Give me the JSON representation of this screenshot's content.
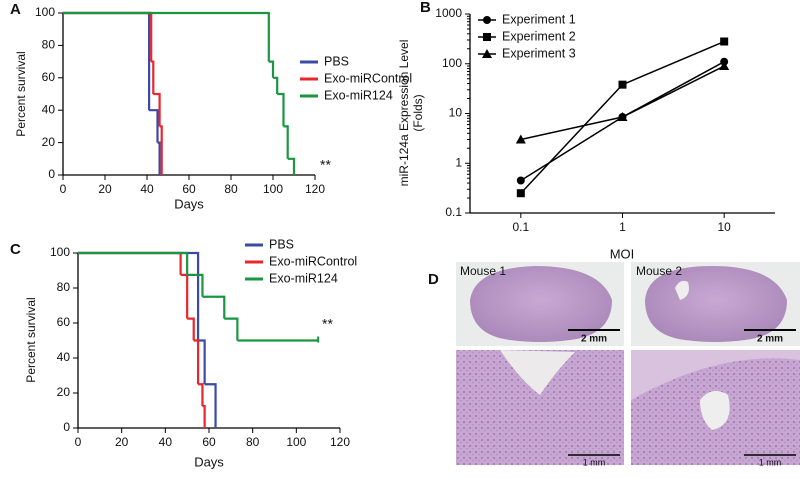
{
  "chart_data": [
    {
      "panel": "A",
      "type": "step",
      "xlabel": "Days",
      "ylabel": "Percent survival",
      "xlim": [
        0,
        120
      ],
      "xticks": [
        0,
        20,
        40,
        60,
        80,
        100,
        120
      ],
      "ylim": [
        0,
        100
      ],
      "yticks": [
        0,
        20,
        40,
        60,
        80,
        100
      ],
      "legend": "right",
      "annotation": "**",
      "series": [
        {
          "name": "PBS",
          "color": "#3a4aa6",
          "x": [
            0,
            41,
            45,
            46
          ],
          "values": [
            100,
            40,
            20,
            0
          ]
        },
        {
          "name": "Exo-miRControl",
          "color": "#e8262b",
          "x": [
            0,
            42,
            43,
            46,
            47
          ],
          "values": [
            100,
            70,
            50,
            30,
            0
          ]
        },
        {
          "name": "Exo-miR124",
          "color": "#1a9641",
          "x": [
            0,
            98,
            100,
            102,
            105,
            107,
            110
          ],
          "values": [
            100,
            70,
            60,
            50,
            30,
            10,
            0
          ]
        }
      ]
    },
    {
      "panel": "B",
      "type": "line",
      "xlabel": "MOI",
      "ylabel": [
        "miR-124a Expression Level",
        "(Folds)"
      ],
      "categories": [
        "0.1",
        "1",
        "10"
      ],
      "log_y": true,
      "ylim": [
        0.1,
        1000
      ],
      "yticks": [
        0.1,
        1,
        10,
        100,
        1000
      ],
      "legend": "upper left",
      "series": [
        {
          "name": "Experiment 1",
          "color": "#000000",
          "marker": "circle",
          "values": [
            0.45,
            8.5,
            110
          ]
        },
        {
          "name": "Experiment 2",
          "color": "#000000",
          "marker": "square",
          "values": [
            0.25,
            38,
            280
          ]
        },
        {
          "name": "Experiment 3",
          "color": "#000000",
          "marker": "triangle",
          "values": [
            3,
            8.5,
            90
          ]
        }
      ]
    },
    {
      "panel": "C",
      "type": "step",
      "xlabel": "Days",
      "ylabel": "Percent survival",
      "xlim": [
        0,
        120
      ],
      "xticks": [
        0,
        20,
        40,
        60,
        80,
        100,
        120
      ],
      "ylim": [
        0,
        100
      ],
      "yticks": [
        0,
        20,
        40,
        60,
        80,
        100
      ],
      "legend": "right",
      "annotation": "**",
      "series": [
        {
          "name": "PBS",
          "color": "#3a4aa6",
          "x": [
            0,
            55,
            58,
            63
          ],
          "values": [
            100,
            50,
            25,
            0
          ]
        },
        {
          "name": "Exo-miRControl",
          "color": "#e8262b",
          "x": [
            0,
            47,
            50,
            53,
            55,
            57,
            58
          ],
          "values": [
            100,
            87.5,
            62.5,
            50,
            25,
            12.5,
            0
          ]
        },
        {
          "name": "Exo-miR124",
          "color": "#1a9641",
          "x": [
            0,
            50,
            57,
            67,
            73,
            110
          ],
          "values": [
            100,
            87.5,
            75,
            62.5,
            50,
            50
          ]
        }
      ]
    }
  ],
  "images": {
    "panel": "D",
    "labels": [
      "Mouse 1",
      "Mouse 2"
    ],
    "scale_bars": [
      "2 mm",
      "2 mm",
      "1 mm",
      "1 mm"
    ]
  }
}
